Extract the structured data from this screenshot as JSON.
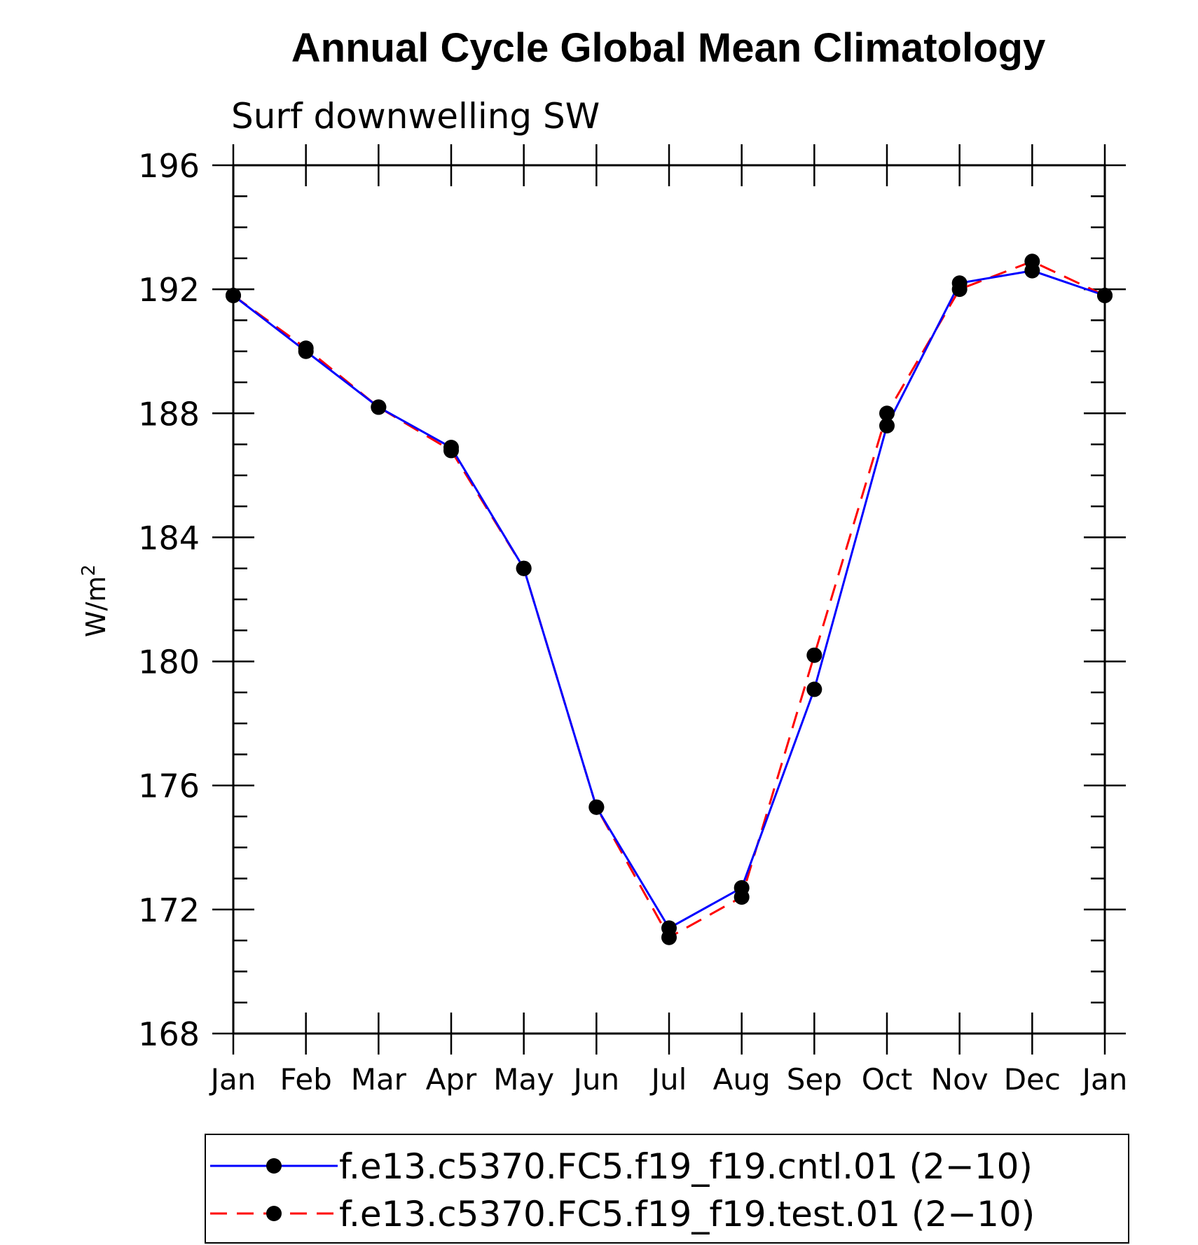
{
  "chart_data": {
    "type": "line",
    "title": "Annual Cycle Global Mean Climatology",
    "subtitle": "Surf downwelling SW",
    "ylabel": "W/m",
    "ylabel_superscript": "2",
    "xlabel": "",
    "categories": [
      "Jan",
      "Feb",
      "Mar",
      "Apr",
      "May",
      "Jun",
      "Jul",
      "Aug",
      "Sep",
      "Oct",
      "Nov",
      "Dec",
      "Jan"
    ],
    "ylim": [
      168,
      196
    ],
    "y_ticks": [
      168,
      172,
      176,
      180,
      184,
      188,
      192,
      196
    ],
    "y_minor_step": 1,
    "grid": false,
    "legend_position": "bottom",
    "series": [
      {
        "name": "f.e13.c5370.FC5.f19_f19.cntl.01 (2−10)",
        "color": "#0000ff",
        "line_style": "solid",
        "marker": "filled-circle",
        "values": [
          191.8,
          190.0,
          188.2,
          186.9,
          183.0,
          175.3,
          171.4,
          172.7,
          179.1,
          187.6,
          192.2,
          192.6,
          191.8
        ]
      },
      {
        "name": "f.e13.c5370.FC5.f19_f19.test.01 (2−10)",
        "color": "#ff0000",
        "line_style": "dashed",
        "marker": "filled-circle",
        "values": [
          191.8,
          190.1,
          188.2,
          186.8,
          183.0,
          175.3,
          171.1,
          172.4,
          180.2,
          188.0,
          192.0,
          192.9,
          191.8
        ]
      }
    ]
  }
}
